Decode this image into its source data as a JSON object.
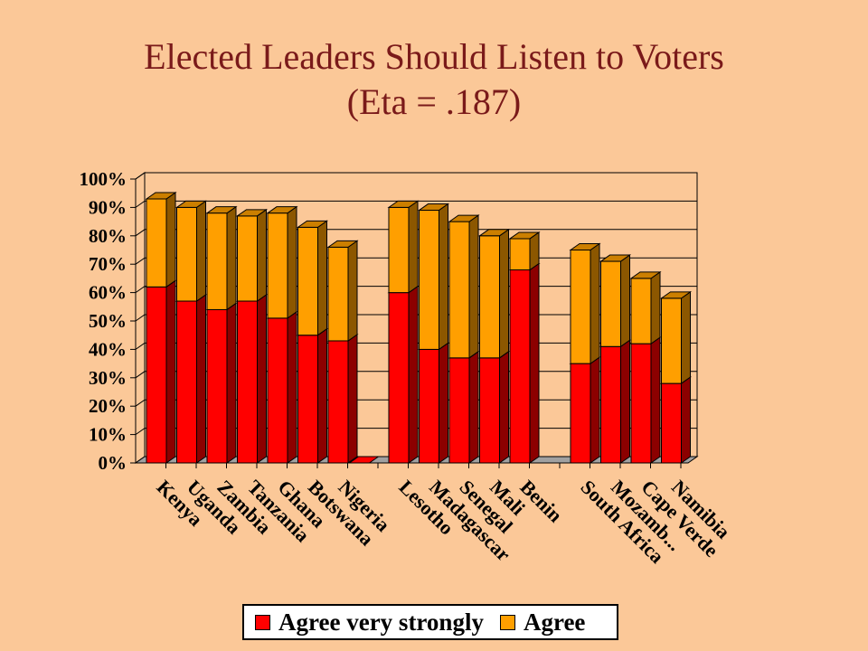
{
  "title": {
    "line1": "Elected Leaders Should Listen to Voters",
    "line2": "(Eta = .187)"
  },
  "colors": {
    "agree_very_strongly": "#FF0000",
    "agree": "#FF9F00",
    "background": "#FBC898",
    "plot_area": "#FBC898",
    "floor": "#A0A0A0"
  },
  "chart_data": {
    "type": "bar",
    "stacked": true,
    "three_d": true,
    "title": "Elected Leaders Should Listen to Voters (Eta = .187)",
    "categories": [
      "Kenya",
      "Uganda",
      "Zambia",
      "Tanzania",
      "Ghana",
      "Botswana",
      "Nigeria",
      "",
      "Lesotho",
      "Madagascar",
      "Senegal",
      "Mali",
      "Benin",
      "",
      "South Africa",
      "Mozamb...",
      "Cape Verde",
      "Namibia"
    ],
    "series": [
      {
        "name": "Agree very strongly",
        "values": [
          62,
          57,
          54,
          57,
          51,
          45,
          43,
          0,
          60,
          40,
          37,
          37,
          68,
          0,
          35,
          41,
          42,
          28
        ]
      },
      {
        "name": "Agree",
        "values": [
          31,
          33,
          34,
          30,
          37,
          38,
          33,
          0,
          30,
          49,
          48,
          43,
          11,
          0,
          40,
          30,
          23,
          30
        ]
      }
    ],
    "ylim": [
      0,
      100
    ],
    "yticks": [
      "0%",
      "10%",
      "20%",
      "30%",
      "40%",
      "50%",
      "60%",
      "70%",
      "80%",
      "90%",
      "100%"
    ],
    "grid": true,
    "legend": "bottom"
  },
  "legend": {
    "items": [
      {
        "label": "Agree very strongly"
      },
      {
        "label": "Agree"
      }
    ]
  }
}
